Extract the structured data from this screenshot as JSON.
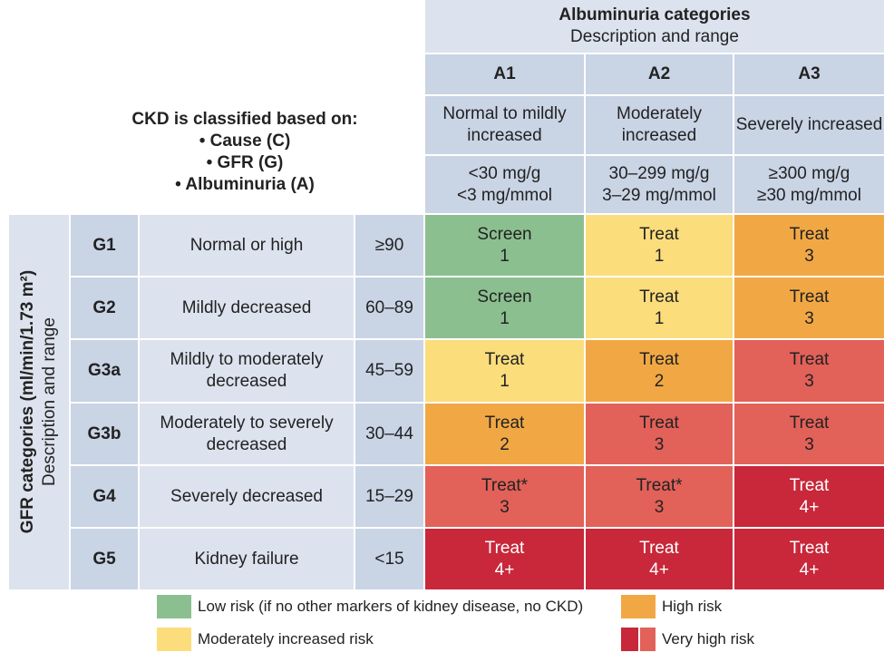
{
  "criteria": {
    "title": "CKD is classified based on:",
    "items": [
      "• Cause (C)",
      "• GFR (G)",
      "• Albuminuria (A)"
    ]
  },
  "albuminuria": {
    "title": "Albuminuria categories",
    "subtitle": "Description and range",
    "categories": [
      {
        "code": "A1",
        "description": "Normal to mildly increased",
        "range1": "<30 mg/g",
        "range2": "<3 mg/mmol"
      },
      {
        "code": "A2",
        "description": "Moderately increased",
        "range1": "30–299 mg/g",
        "range2": "3–29 mg/mmol"
      },
      {
        "code": "A3",
        "description": "Severely increased",
        "range1": "≥300 mg/g",
        "range2": "≥30 mg/mmol"
      }
    ]
  },
  "gfr": {
    "title": "GFR categories (ml/min/1.73 m²)",
    "subtitle": "Description and range",
    "rows": [
      {
        "code": "G1",
        "desc": "Normal or high",
        "range": "≥90",
        "cells": [
          {
            "action": "Screen",
            "n": "1",
            "risk": "low"
          },
          {
            "action": "Treat",
            "n": "1",
            "risk": "moderate"
          },
          {
            "action": "Treat",
            "n": "3",
            "risk": "high"
          }
        ]
      },
      {
        "code": "G2",
        "desc": "Mildly decreased",
        "range": "60–89",
        "cells": [
          {
            "action": "Screen",
            "n": "1",
            "risk": "low"
          },
          {
            "action": "Treat",
            "n": "1",
            "risk": "moderate"
          },
          {
            "action": "Treat",
            "n": "3",
            "risk": "high"
          }
        ]
      },
      {
        "code": "G3a",
        "desc": "Mildly to moderately decreased",
        "range": "45–59",
        "cells": [
          {
            "action": "Treat",
            "n": "1",
            "risk": "moderate"
          },
          {
            "action": "Treat",
            "n": "2",
            "risk": "high"
          },
          {
            "action": "Treat",
            "n": "3",
            "risk": "veryhigh1"
          }
        ]
      },
      {
        "code": "G3b",
        "desc": "Moderately to severely decreased",
        "range": "30–44",
        "cells": [
          {
            "action": "Treat",
            "n": "2",
            "risk": "high"
          },
          {
            "action": "Treat",
            "n": "3",
            "risk": "veryhigh1"
          },
          {
            "action": "Treat",
            "n": "3",
            "risk": "veryhigh1"
          }
        ]
      },
      {
        "code": "G4",
        "desc": "Severely decreased",
        "range": "15–29",
        "cells": [
          {
            "action": "Treat*",
            "n": "3",
            "risk": "veryhigh1"
          },
          {
            "action": "Treat*",
            "n": "3",
            "risk": "veryhigh1"
          },
          {
            "action": "Treat",
            "n": "4+",
            "risk": "veryhigh2"
          }
        ]
      },
      {
        "code": "G5",
        "desc": "Kidney failure",
        "range": "<15",
        "cells": [
          {
            "action": "Treat",
            "n": "4+",
            "risk": "veryhigh2"
          },
          {
            "action": "Treat",
            "n": "4+",
            "risk": "veryhigh2"
          },
          {
            "action": "Treat",
            "n": "4+",
            "risk": "veryhigh2"
          }
        ]
      }
    ]
  },
  "risk_colors": {
    "low": "#8bbf8f",
    "moderate": "#fbdd7c",
    "high": "#f1a844",
    "veryhigh1": "#e26159",
    "veryhigh2": "#c8283a"
  },
  "legend": [
    {
      "label": "Low risk (if no other markers of kidney disease, no CKD)",
      "colors": [
        "#8bbf8f"
      ]
    },
    {
      "label": "Moderately increased risk",
      "colors": [
        "#fbdd7c"
      ]
    },
    {
      "label": "High risk",
      "colors": [
        "#f1a844"
      ]
    },
    {
      "label": "Very high risk",
      "colors": [
        "#c8283a",
        "#e26159"
      ]
    }
  ]
}
